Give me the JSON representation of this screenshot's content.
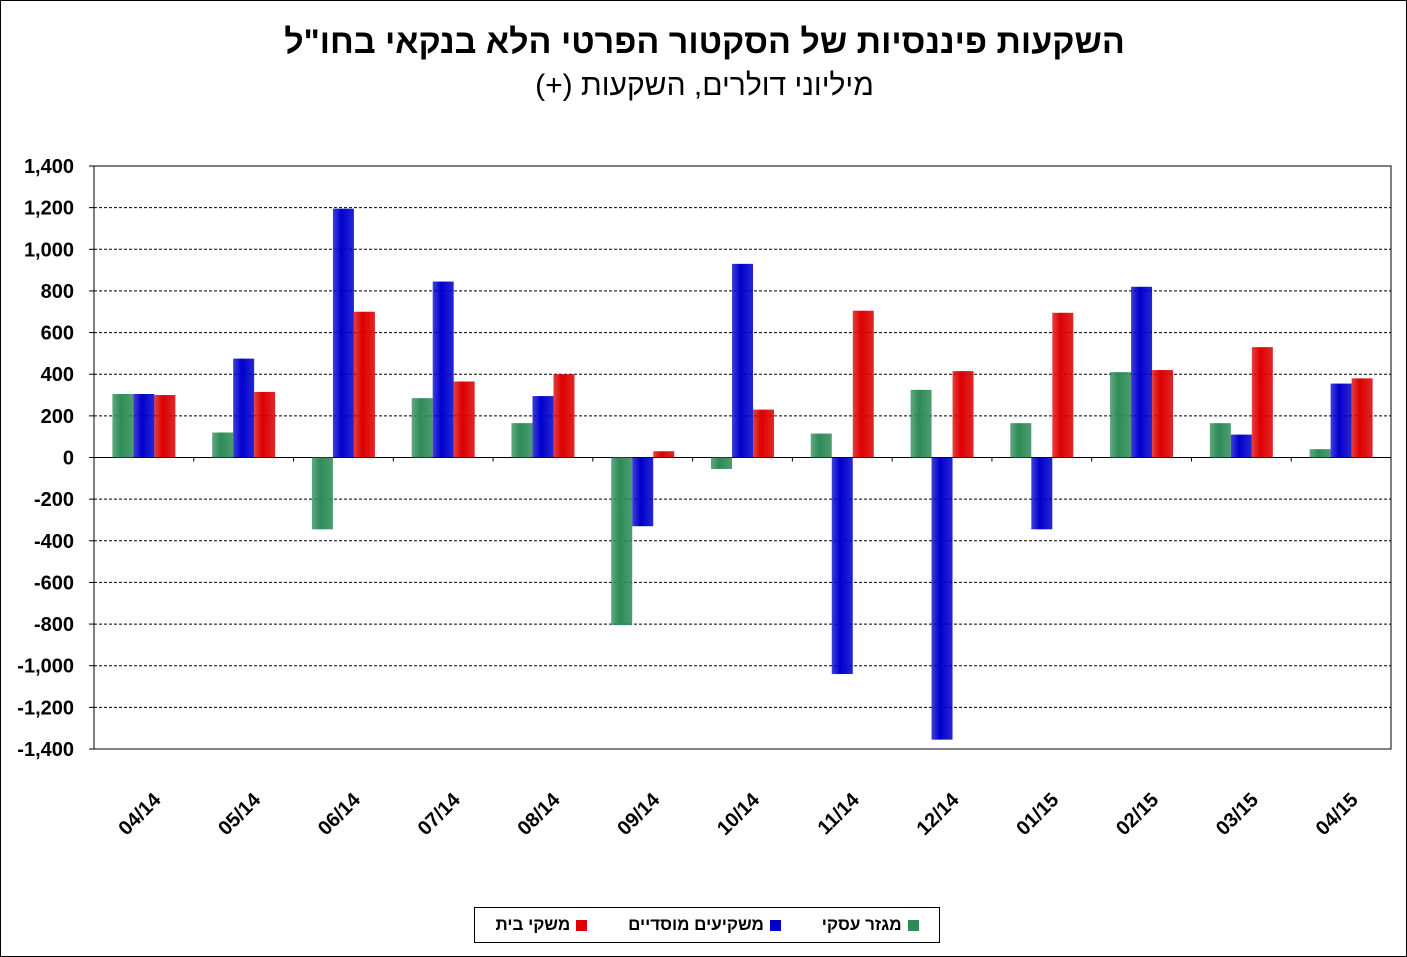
{
  "chart_data": {
    "type": "bar",
    "title": "השקעות פיננסיות של הסקטור הפרטי הלא בנקאי בחו\"ל",
    "subtitle": "מיליוני דולרים, השקעות (+)",
    "categories": [
      "04/14",
      "05/14",
      "06/14",
      "07/14",
      "08/14",
      "09/14",
      "10/14",
      "11/14",
      "12/14",
      "01/15",
      "02/15",
      "03/15",
      "04/15"
    ],
    "ylim": [
      -1400,
      1400
    ],
    "yticks": [
      1400,
      1200,
      1000,
      800,
      600,
      400,
      200,
      0,
      -200,
      -400,
      -600,
      -800,
      -1000,
      -1200,
      -1400
    ],
    "ytick_labels": [
      "1,400",
      "1,200",
      "1,000",
      "800",
      "600",
      "400",
      "200",
      "0",
      "-200",
      "-400",
      "-600",
      "-800",
      "-1,000",
      "-1,200",
      "-1,400"
    ],
    "grid": true,
    "legend_position": "bottom",
    "series": [
      {
        "name": "מגזר עסקי",
        "color": "#2E8B57",
        "values": [
          305,
          120,
          -345,
          285,
          165,
          -805,
          -55,
          115,
          325,
          165,
          410,
          165,
          40
        ]
      },
      {
        "name": "משקיעים מוסדיים",
        "color": "#0000CC",
        "values": [
          305,
          475,
          1195,
          845,
          295,
          -330,
          930,
          -1040,
          -1355,
          -345,
          820,
          110,
          355
        ]
      },
      {
        "name": "משקי בית",
        "color": "#DD0000",
        "values": [
          300,
          315,
          700,
          365,
          400,
          30,
          230,
          705,
          415,
          695,
          420,
          530,
          380
        ]
      }
    ]
  }
}
